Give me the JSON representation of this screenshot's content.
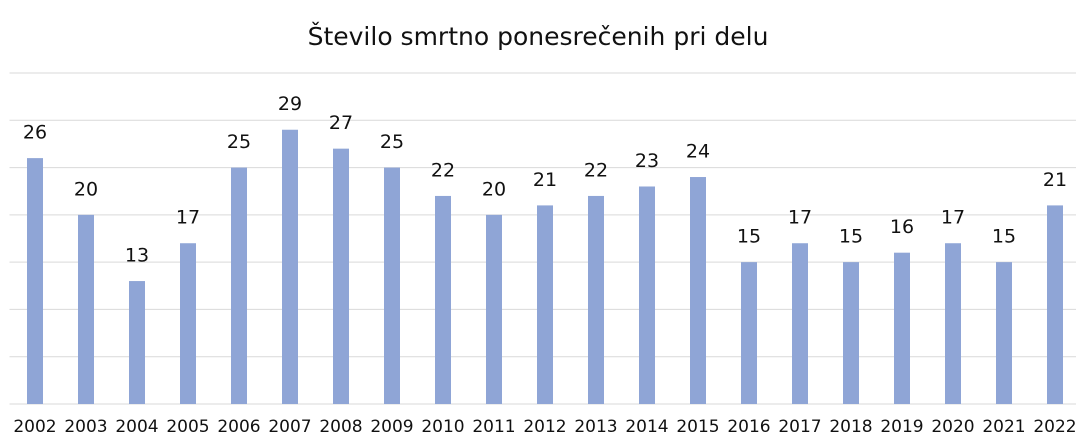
{
  "chart_data": {
    "type": "bar",
    "title": "Število smrtno ponesrečenih pri delu",
    "categories": [
      "2002",
      "2003",
      "2004",
      "2005",
      "2006",
      "2007",
      "2008",
      "2009",
      "2010",
      "2011",
      "2012",
      "2013",
      "2014",
      "2015",
      "2016",
      "2017",
      "2018",
      "2019",
      "2020",
      "2021",
      "2022"
    ],
    "values": [
      26,
      20,
      13,
      17,
      25,
      29,
      27,
      25,
      22,
      20,
      21,
      22,
      23,
      24,
      15,
      17,
      15,
      16,
      17,
      15,
      21
    ],
    "color": "#8fa5d6",
    "ylim": [
      0,
      35
    ],
    "yticks": [
      0,
      5,
      10,
      15,
      20,
      25,
      30,
      35
    ],
    "grid": true
  }
}
